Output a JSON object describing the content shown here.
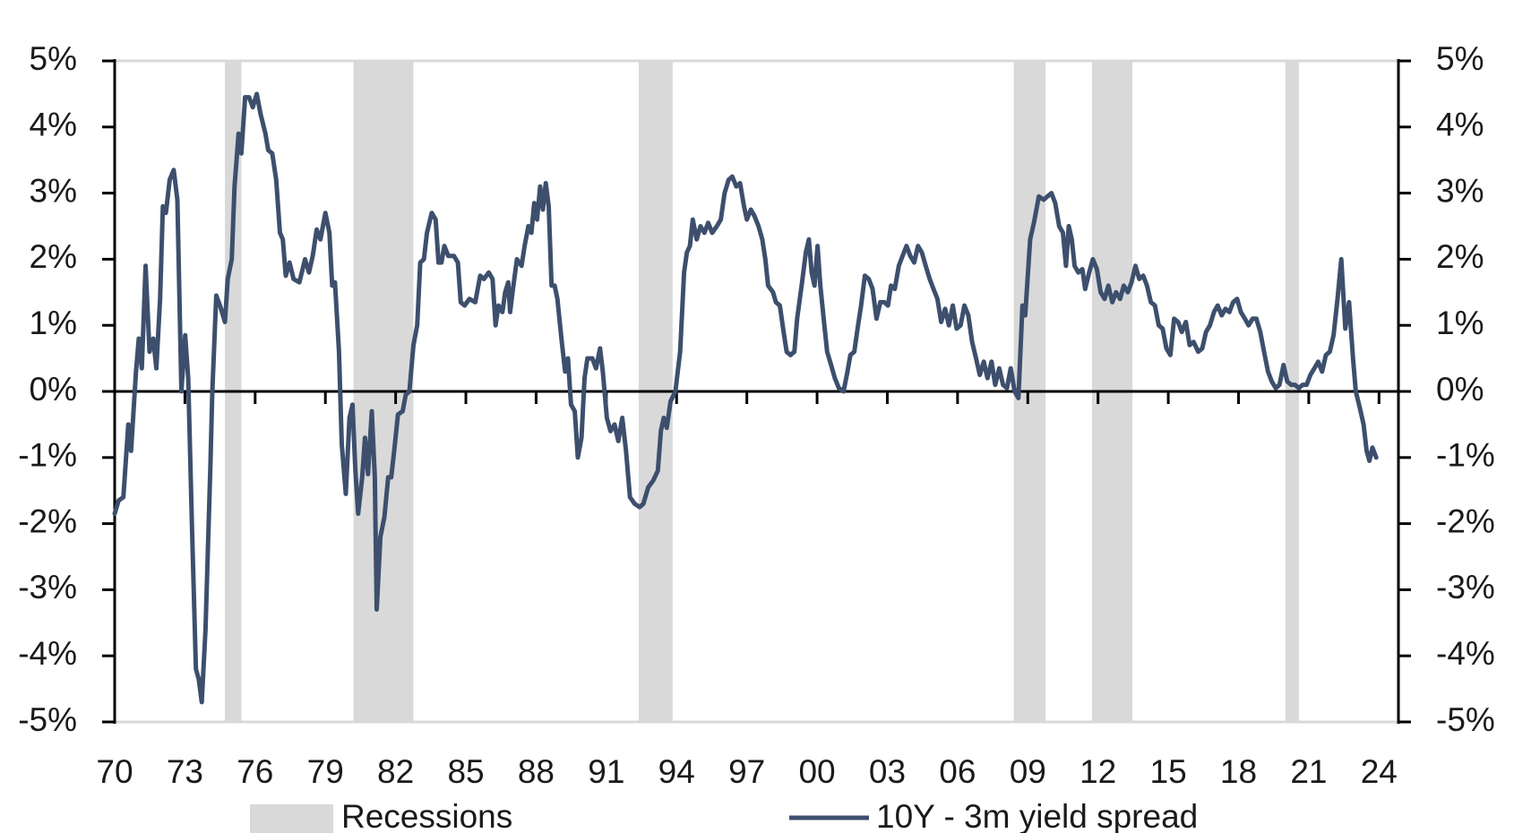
{
  "chart_data": {
    "type": "line",
    "x": [
      1970.0,
      1970.17,
      1970.37,
      1970.58,
      1970.7,
      1970.91,
      1971.03,
      1971.16,
      1971.32,
      1971.49,
      1971.65,
      1971.78,
      1971.94,
      1972.06,
      1972.19,
      1972.35,
      1972.52,
      1972.68,
      1972.85,
      1973.01,
      1973.14,
      1973.3,
      1973.47,
      1973.59,
      1973.72,
      1973.88,
      1974.09,
      1974.17,
      1974.34,
      1974.5,
      1974.71,
      1974.83,
      1975.0,
      1975.12,
      1975.29,
      1975.41,
      1975.57,
      1975.74,
      1975.9,
      1976.07,
      1976.23,
      1976.44,
      1976.56,
      1976.73,
      1976.9,
      1977.06,
      1977.18,
      1977.31,
      1977.47,
      1977.64,
      1977.89,
      1978.13,
      1978.3,
      1978.46,
      1978.63,
      1978.79,
      1979.0,
      1979.17,
      1979.29,
      1979.41,
      1979.58,
      1979.7,
      1979.87,
      1980.03,
      1980.16,
      1980.28,
      1980.4,
      1980.57,
      1980.69,
      1980.82,
      1980.98,
      1981.11,
      1981.19,
      1981.35,
      1981.52,
      1981.68,
      1981.81,
      1981.97,
      1982.1,
      1982.3,
      1982.43,
      1982.59,
      1982.76,
      1982.92,
      1983.05,
      1983.21,
      1983.34,
      1983.54,
      1983.71,
      1983.83,
      1983.96,
      1984.08,
      1984.25,
      1984.49,
      1984.66,
      1984.78,
      1984.95,
      1985.15,
      1985.4,
      1985.61,
      1985.77,
      1985.98,
      1986.14,
      1986.27,
      1986.39,
      1986.56,
      1986.68,
      1986.81,
      1986.89,
      1987.01,
      1987.18,
      1987.38,
      1987.51,
      1987.67,
      1987.8,
      1987.92,
      1988.04,
      1988.17,
      1988.29,
      1988.41,
      1988.54,
      1988.66,
      1988.79,
      1988.91,
      1989.08,
      1989.24,
      1989.36,
      1989.49,
      1989.65,
      1989.78,
      1989.94,
      1990.07,
      1990.19,
      1990.4,
      1990.56,
      1990.73,
      1990.85,
      1991.02,
      1991.18,
      1991.35,
      1991.51,
      1991.68,
      1991.84,
      1992.01,
      1992.21,
      1992.42,
      1992.58,
      1992.79,
      1993.0,
      1993.2,
      1993.33,
      1993.45,
      1993.58,
      1993.74,
      1993.95,
      1994.15,
      1994.32,
      1994.44,
      1994.57,
      1994.69,
      1994.86,
      1995.02,
      1995.19,
      1995.35,
      1995.52,
      1995.72,
      1995.89,
      1996.05,
      1996.22,
      1996.38,
      1996.55,
      1996.71,
      1996.88,
      1997.0,
      1997.17,
      1997.33,
      1997.5,
      1997.66,
      1997.79,
      1997.91,
      1998.12,
      1998.24,
      1998.41,
      1998.57,
      1998.7,
      1998.86,
      1999.03,
      1999.15,
      1999.36,
      1999.52,
      1999.65,
      1999.77,
      1999.89,
      2000.02,
      2000.14,
      2000.31,
      2000.43,
      2000.6,
      2000.76,
      2000.93,
      2001.13,
      2001.3,
      2001.42,
      2001.59,
      2001.75,
      2001.88,
      2002.04,
      2002.21,
      2002.37,
      2002.54,
      2002.7,
      2002.87,
      2003.03,
      2003.16,
      2003.32,
      2003.49,
      2003.65,
      2003.82,
      2003.98,
      2004.15,
      2004.31,
      2004.48,
      2004.64,
      2004.81,
      2004.97,
      2005.14,
      2005.3,
      2005.47,
      2005.63,
      2005.8,
      2005.96,
      2006.13,
      2006.29,
      2006.46,
      2006.62,
      2006.79,
      2006.95,
      2007.12,
      2007.28,
      2007.45,
      2007.61,
      2007.78,
      2007.94,
      2008.11,
      2008.27,
      2008.44,
      2008.6,
      2008.77,
      2008.89,
      2009.1,
      2009.26,
      2009.47,
      2009.68,
      2009.84,
      2010.01,
      2010.17,
      2010.34,
      2010.5,
      2010.63,
      2010.75,
      2010.88,
      2011.0,
      2011.16,
      2011.33,
      2011.45,
      2011.62,
      2011.78,
      2011.95,
      2012.11,
      2012.28,
      2012.44,
      2012.61,
      2012.77,
      2012.94,
      2013.1,
      2013.27,
      2013.43,
      2013.6,
      2013.76,
      2013.93,
      2014.09,
      2014.26,
      2014.43,
      2014.59,
      2014.76,
      2014.92,
      2015.09,
      2015.25,
      2015.42,
      2015.58,
      2015.75,
      2015.91,
      2016.08,
      2016.28,
      2016.45,
      2016.61,
      2016.78,
      2016.95,
      2017.11,
      2017.28,
      2017.44,
      2017.61,
      2017.77,
      2017.94,
      2018.1,
      2018.27,
      2018.43,
      2018.6,
      2018.76,
      2018.93,
      2019.09,
      2019.26,
      2019.42,
      2019.59,
      2019.75,
      2019.92,
      2020.08,
      2020.25,
      2020.41,
      2020.58,
      2020.74,
      2020.91,
      2021.07,
      2021.24,
      2021.4,
      2021.57,
      2021.73,
      2021.9,
      2022.06,
      2022.23,
      2022.39,
      2022.56,
      2022.72,
      2022.89,
      2023.01,
      2023.18,
      2023.34,
      2023.47,
      2023.59,
      2023.72,
      2023.88
    ],
    "series": [
      {
        "name": "10Y - 3m yield spread",
        "color": "#3d4f6d",
        "values": [
          -1.85,
          -1.65,
          -1.6,
          -0.5,
          -0.9,
          0.3,
          0.8,
          0.35,
          1.9,
          0.6,
          0.8,
          0.35,
          1.4,
          2.8,
          2.7,
          3.2,
          3.35,
          2.9,
          0.0,
          0.85,
          0.2,
          -2.0,
          -4.2,
          -4.35,
          -4.7,
          -3.6,
          -1.1,
          0.0,
          1.45,
          1.3,
          1.05,
          1.7,
          2.0,
          3.1,
          3.9,
          3.6,
          4.45,
          4.45,
          4.3,
          4.5,
          4.2,
          3.9,
          3.65,
          3.6,
          3.2,
          2.4,
          2.3,
          1.75,
          1.95,
          1.7,
          1.65,
          2.0,
          1.8,
          2.05,
          2.45,
          2.3,
          2.7,
          2.4,
          1.6,
          1.65,
          0.6,
          -0.8,
          -1.55,
          -0.4,
          -0.2,
          -1.2,
          -1.85,
          -1.3,
          -0.7,
          -1.25,
          -0.3,
          -1.3,
          -3.3,
          -2.2,
          -1.9,
          -1.3,
          -1.3,
          -0.8,
          -0.35,
          -0.3,
          -0.05,
          0.0,
          0.7,
          1.0,
          1.95,
          2.0,
          2.4,
          2.7,
          2.6,
          1.95,
          1.95,
          2.2,
          2.05,
          2.05,
          1.95,
          1.35,
          1.3,
          1.4,
          1.35,
          1.75,
          1.7,
          1.8,
          1.7,
          1.0,
          1.3,
          1.2,
          1.5,
          1.65,
          1.2,
          1.55,
          2.0,
          1.9,
          2.2,
          2.5,
          2.4,
          2.85,
          2.6,
          3.1,
          2.75,
          3.15,
          2.8,
          1.6,
          1.6,
          1.4,
          0.8,
          0.3,
          0.5,
          -0.2,
          -0.3,
          -1.0,
          -0.7,
          0.2,
          0.5,
          0.5,
          0.35,
          0.65,
          0.3,
          -0.4,
          -0.6,
          -0.5,
          -0.75,
          -0.4,
          -0.9,
          -1.6,
          -1.7,
          -1.75,
          -1.7,
          -1.45,
          -1.35,
          -1.2,
          -0.6,
          -0.4,
          -0.55,
          -0.15,
          0.0,
          0.6,
          1.8,
          2.1,
          2.2,
          2.6,
          2.3,
          2.5,
          2.4,
          2.55,
          2.4,
          2.5,
          2.6,
          3.0,
          3.2,
          3.25,
          3.1,
          3.15,
          2.8,
          2.6,
          2.75,
          2.65,
          2.5,
          2.3,
          2.0,
          1.6,
          1.5,
          1.35,
          1.3,
          0.9,
          0.6,
          0.55,
          0.6,
          1.1,
          1.65,
          2.1,
          2.3,
          1.8,
          1.6,
          2.2,
          1.6,
          1.0,
          0.6,
          0.4,
          0.2,
          0.05,
          0.0,
          0.3,
          0.55,
          0.6,
          1.0,
          1.3,
          1.75,
          1.7,
          1.55,
          1.1,
          1.35,
          1.35,
          1.3,
          1.6,
          1.55,
          1.9,
          2.05,
          2.2,
          2.05,
          1.95,
          2.2,
          2.1,
          1.9,
          1.7,
          1.55,
          1.4,
          1.05,
          1.25,
          1.0,
          1.3,
          0.95,
          1.0,
          1.3,
          1.15,
          0.75,
          0.5,
          0.25,
          0.45,
          0.2,
          0.45,
          0.1,
          0.35,
          0.1,
          0.05,
          0.35,
          0.0,
          -0.1,
          1.3,
          1.15,
          2.3,
          2.55,
          2.95,
          2.9,
          2.95,
          3.0,
          2.85,
          2.5,
          2.4,
          1.9,
          2.5,
          2.3,
          1.9,
          1.8,
          1.85,
          1.55,
          1.8,
          2.0,
          1.85,
          1.5,
          1.4,
          1.6,
          1.35,
          1.5,
          1.4,
          1.6,
          1.5,
          1.65,
          1.9,
          1.7,
          1.75,
          1.6,
          1.35,
          1.3,
          1.0,
          0.95,
          0.65,
          0.55,
          1.1,
          1.05,
          0.9,
          1.05,
          0.7,
          0.75,
          0.6,
          0.65,
          0.9,
          1.0,
          1.2,
          1.3,
          1.15,
          1.25,
          1.2,
          1.35,
          1.4,
          1.2,
          1.1,
          1.0,
          1.1,
          1.1,
          0.9,
          0.6,
          0.3,
          0.15,
          0.05,
          0.1,
          0.4,
          0.15,
          0.1,
          0.1,
          0.05,
          0.1,
          0.1,
          0.25,
          0.35,
          0.45,
          0.3,
          0.55,
          0.6,
          0.85,
          1.4,
          2.0,
          0.95,
          1.35,
          0.5,
          0.0,
          -0.25,
          -0.5,
          -0.9,
          -1.05,
          -0.85,
          -1.0
        ]
      }
    ],
    "recessions": {
      "name": "Recessions",
      "color": "#d9d9d9",
      "spans": [
        [
          1974.71,
          1975.41
        ],
        [
          1980.2,
          1982.76
        ],
        [
          1992.38,
          1993.83
        ],
        [
          2008.4,
          2009.76
        ],
        [
          2011.74,
          2013.47
        ],
        [
          2020.0,
          2020.58
        ]
      ]
    },
    "xlim": [
      1970,
      2024.83
    ],
    "xticks": [
      {
        "value": 1970,
        "label": "70"
      },
      {
        "value": 1973,
        "label": "73"
      },
      {
        "value": 1976,
        "label": "76"
      },
      {
        "value": 1979,
        "label": "79"
      },
      {
        "value": 1982,
        "label": "82"
      },
      {
        "value": 1985,
        "label": "85"
      },
      {
        "value": 1988,
        "label": "88"
      },
      {
        "value": 1991,
        "label": "91"
      },
      {
        "value": 1994,
        "label": "94"
      },
      {
        "value": 1997,
        "label": "97"
      },
      {
        "value": 2000,
        "label": "00"
      },
      {
        "value": 2003,
        "label": "03"
      },
      {
        "value": 2006,
        "label": "06"
      },
      {
        "value": 2009,
        "label": "09"
      },
      {
        "value": 2012,
        "label": "12"
      },
      {
        "value": 2015,
        "label": "15"
      },
      {
        "value": 2018,
        "label": "18"
      },
      {
        "value": 2021,
        "label": "21"
      },
      {
        "value": 2024,
        "label": "24"
      }
    ],
    "ylim": [
      -5,
      5
    ],
    "yticks": [
      {
        "value": 5,
        "label": "5%"
      },
      {
        "value": 4,
        "label": "4%"
      },
      {
        "value": 3,
        "label": "3%"
      },
      {
        "value": 2,
        "label": "2%"
      },
      {
        "value": 1,
        "label": "1%"
      },
      {
        "value": 0,
        "label": "0%"
      },
      {
        "value": -1,
        "label": "-1%"
      },
      {
        "value": -2,
        "label": "-2%"
      },
      {
        "value": -3,
        "label": "-3%"
      },
      {
        "value": -4,
        "label": "-4%"
      },
      {
        "value": -5,
        "label": "-5%"
      }
    ],
    "y2lim": [
      -5,
      5
    ],
    "y2ticks": [
      {
        "value": 5,
        "label": "5%"
      },
      {
        "value": 4,
        "label": "4%"
      },
      {
        "value": 3,
        "label": "3%"
      },
      {
        "value": 2,
        "label": "2%"
      },
      {
        "value": 1,
        "label": "1%"
      },
      {
        "value": 0,
        "label": "0%"
      },
      {
        "value": -1,
        "label": "-1%"
      },
      {
        "value": -2,
        "label": "-2%"
      },
      {
        "value": -3,
        "label": "-3%"
      },
      {
        "value": -4,
        "label": "-4%"
      },
      {
        "value": -5,
        "label": "-5%"
      }
    ],
    "legend": "bottom"
  }
}
